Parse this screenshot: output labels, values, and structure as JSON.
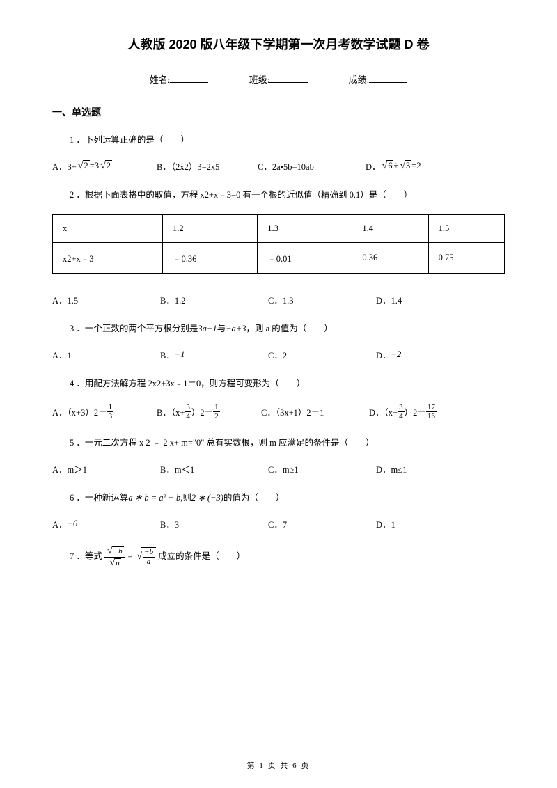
{
  "title": "人教版 2020 版八年级下学期第一次月考数学试题 D 卷",
  "header": {
    "name_label": "姓名:",
    "class_label": "班级:",
    "score_label": "成绩:"
  },
  "section1_title": "一、单选题",
  "q1": {
    "text": "1 ．下列运算正确的是（　　）",
    "a_pre": "A．3+",
    "a_mid": "=3",
    "a_rad1": "2",
    "a_rad2": "2",
    "b": "B．（2x2）3=2x5",
    "c": "C．2a•5b=10ab",
    "d_pre": "D．",
    "d_rad1": "6",
    "d_div": " ÷ ",
    "d_rad2": "3",
    "d_suf": "=2"
  },
  "q2": {
    "text": "2 ．根据下面表格中的取值，方程 x2+x﹣3=0 有一个根的近似值（精确到 0.1）是（　　）",
    "a": "A．1.5",
    "b": "B．1.2",
    "c": "C．1.3",
    "d": "D．1.4"
  },
  "table": {
    "r1": [
      "x",
      "1.2",
      "1.3",
      "1.4",
      "1.5"
    ],
    "r2": [
      "x2+x﹣3",
      "﹣0.36",
      "﹣0.01",
      "0.36",
      "0.75"
    ]
  },
  "q3": {
    "pre": "3 ．一个正数的两个平方根分别是",
    "expr1": "3a−1",
    "mid": "与",
    "expr2": "−a+3",
    "suf": "，则 a 的值为（　　）",
    "a": "A．1",
    "b_pre": "B．",
    "b_val": "−1",
    "c": "C．2",
    "d_pre": "D．",
    "d_val": "−2"
  },
  "q4": {
    "text": "4 ．用配方法解方程 2x2+3x﹣1＝0，则方程可变形为（　　）",
    "a_pre": "A．（x+3）2＝",
    "b_pre": "B．（x+",
    "b_mid": "）2＝",
    "c": "C．（3x+1）2＝1",
    "d_pre": "D．（x+",
    "d_mid": "）2＝"
  },
  "q5": {
    "text": "5 ．一元二次方程 x 2 ﹣ 2 x+ m=\"0\" 总有实数根，则 m 应满足的条件是（　　）",
    "a": "A．m＞1",
    "b": "B．m＜1",
    "c": "C．m≥1",
    "d": "D．m≤1"
  },
  "q6": {
    "pre": "6 ．一种新运算",
    "expr1": "a ∗ b = a² − b,",
    "mid": "则",
    "expr2": "2 ∗ (−3)",
    "suf": "的值为（　　）",
    "a_pre": "A．",
    "a_val": "−6",
    "b": "B．3",
    "c": "C．7",
    "d": "D．1"
  },
  "q7": {
    "pre": "7 ．等式 ",
    "suf": " 成立的条件是（　　）"
  },
  "footer": "第 1 页 共 6 页"
}
